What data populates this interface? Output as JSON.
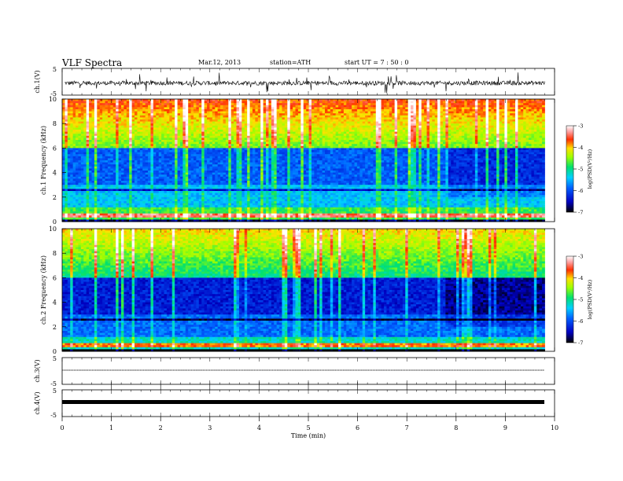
{
  "header": {
    "title": "VLF  Spectra",
    "date": "Mar.12, 2013",
    "station": "station=ATH",
    "start": "start  UT  =   7  : 50 : 0"
  },
  "chart_data": [
    {
      "type": "line",
      "ylabel": "ch.1(V)",
      "yticks": [
        "5",
        "-5"
      ],
      "ylim": [
        -5,
        5
      ],
      "description_level": -0.5,
      "noise": 0.8
    },
    {
      "type": "heatmap",
      "ylabel": "ch.1  Frequency  (kHz)",
      "ylim": [
        0,
        10
      ],
      "yticks": [
        "0",
        "2",
        "4",
        "6",
        "8",
        "10"
      ],
      "colorbar": {
        "label": "log(PSD(V²/Hz)",
        "ticks": [
          "-3",
          "-4",
          "-5",
          "-6",
          "-7"
        ],
        "range": [
          -7,
          -3
        ]
      }
    },
    {
      "type": "heatmap",
      "ylabel": "ch.2  Frequency  (kHz)",
      "ylim": [
        0,
        10
      ],
      "yticks": [
        "0",
        "2",
        "4",
        "6",
        "8",
        "10"
      ],
      "colorbar": {
        "label": "log(PSD(V²/Hz)",
        "ticks": [
          "-3",
          "-4",
          "-5",
          "-6",
          "-7"
        ],
        "range": [
          -7,
          -3
        ]
      }
    },
    {
      "type": "line",
      "ylabel": "ch.3(V)",
      "yticks": [
        "5",
        "-5"
      ],
      "ylim": [
        -5,
        5
      ]
    },
    {
      "type": "line",
      "ylabel": "ch.4(V)",
      "yticks": [
        "5",
        "-5"
      ],
      "ylim": [
        -5,
        5
      ]
    }
  ],
  "xaxis": {
    "label": "Time  (min)",
    "ticks": [
      "0",
      "1",
      "2",
      "3",
      "4",
      "5",
      "6",
      "7",
      "8",
      "9",
      "10"
    ],
    "xlim": [
      0,
      10
    ],
    "data_end": 9.8
  }
}
